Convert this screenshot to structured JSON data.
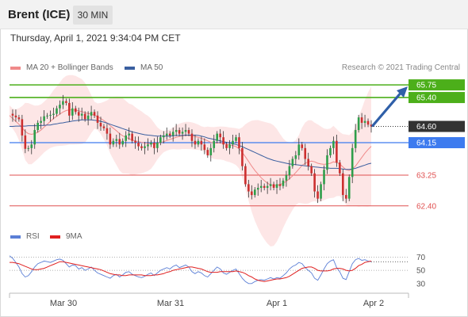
{
  "header": {
    "title": "Brent (ICE)",
    "timeframe": "30 MIN"
  },
  "datetime": "Thursday, April 1, 2021 9:34:04 PM CET",
  "legend": {
    "ma20": {
      "label": "MA 20 + Bollinger Bands",
      "color": "#f08a8a"
    },
    "ma50": {
      "label": "MA 50",
      "color": "#3a5fa0"
    },
    "copyright": "Research © 2021 Trading Central"
  },
  "rsi_legend": {
    "rsi": {
      "label": "RSI",
      "color": "#5b7fd6"
    },
    "ma9": {
      "label": "9MA",
      "color": "#e02020"
    }
  },
  "chart_data": [
    {
      "type": "candlestick",
      "x_ticks": [
        "Mar 30",
        "Mar 31",
        "Apr 1",
        "Apr 2"
      ],
      "ylim": [
        62.0,
        65.95
      ],
      "price_levels": [
        {
          "value": 65.75,
          "label": "65.75",
          "style": "resistance",
          "color": "#4caf1a"
        },
        {
          "value": 65.4,
          "label": "65.40",
          "style": "resistance",
          "color": "#4caf1a"
        },
        {
          "value": 64.6,
          "label": "64.60",
          "style": "last",
          "color": "#333333"
        },
        {
          "value": 64.15,
          "label": "64.15",
          "style": "pivot",
          "color": "#3d7bef"
        },
        {
          "value": 63.25,
          "label": "63.25",
          "style": "support",
          "color": "#e05050"
        },
        {
          "value": 62.4,
          "label": "62.40",
          "style": "support",
          "color": "#e05050"
        }
      ],
      "series": [
        {
          "name": "price",
          "values": [
            64.95,
            64.9,
            64.85,
            64.8,
            64.35,
            63.98,
            64.0,
            64.1,
            64.5,
            64.7,
            64.75,
            64.88,
            64.9,
            64.92,
            64.95,
            65.1,
            65.2,
            65.3,
            65.25,
            64.9,
            65.1,
            65.0,
            64.9,
            64.95,
            64.8,
            64.9,
            65.0,
            64.9,
            64.7,
            64.6,
            64.55,
            64.4,
            64.1,
            64.2,
            64.25,
            64.1,
            64.2,
            64.35,
            64.4,
            64.2,
            64.15,
            64.05,
            64.0,
            64.05,
            64.1,
            64.15,
            64.0,
            64.15,
            64.3,
            64.35,
            64.4,
            64.35,
            64.45,
            64.5,
            64.4,
            64.45,
            64.5,
            64.4,
            64.2,
            64.1,
            64.2,
            64.1,
            63.95,
            63.8,
            64.0,
            64.2,
            64.4,
            64.3,
            64.1,
            64.0,
            64.1,
            64.2,
            64.3,
            64.0,
            63.5,
            63.0,
            62.8,
            62.7,
            62.85,
            62.9,
            62.95,
            62.9,
            62.95,
            63.0,
            62.9,
            63.0,
            62.95,
            63.1,
            63.25,
            63.5,
            63.7,
            63.8,
            64.1,
            64.0,
            63.7,
            63.5,
            63.3,
            62.8,
            62.6,
            63.0,
            63.4,
            63.8,
            64.0,
            64.2,
            63.6,
            63.3,
            62.7,
            62.6,
            63.2,
            64.0,
            64.5,
            64.85,
            64.7,
            64.75,
            64.65,
            64.6
          ]
        },
        {
          "name": "MA 20",
          "values": [
            64.9,
            64.82,
            64.74,
            64.66,
            64.56,
            64.46,
            64.4,
            64.38,
            64.4,
            64.44,
            64.5,
            64.58,
            64.66,
            64.74,
            64.82,
            64.88,
            64.94,
            65.0,
            65.04,
            65.06,
            65.06,
            65.05,
            65.03,
            65.01,
            64.98,
            64.96,
            64.94,
            64.91,
            64.87,
            64.82,
            64.76,
            64.7,
            64.62,
            64.55,
            64.48,
            64.4,
            64.34,
            64.3,
            64.26,
            64.22,
            64.2,
            64.18,
            64.16,
            64.14,
            64.13,
            64.12,
            64.12,
            64.13,
            64.15,
            64.18,
            64.21,
            64.24,
            64.27,
            64.3,
            64.32,
            64.34,
            64.35,
            64.35,
            64.34,
            64.32,
            64.3,
            64.27,
            64.24,
            64.2,
            64.16,
            64.14,
            64.14,
            64.14,
            64.13,
            64.11,
            64.09,
            64.07,
            64.04,
            63.98,
            63.88,
            63.76,
            63.63,
            63.5,
            63.38,
            63.28,
            63.18,
            63.1,
            63.03,
            62.98,
            62.96,
            62.97,
            62.99,
            63.03,
            63.08,
            63.15,
            63.23,
            63.32,
            63.42,
            63.52,
            63.58,
            63.62,
            63.64,
            63.62,
            63.58,
            63.56,
            63.55,
            63.56,
            63.58,
            63.62,
            63.6,
            63.56,
            63.48,
            63.4,
            63.38,
            63.42,
            63.5,
            63.62,
            63.74,
            63.86,
            63.96,
            64.05
          ]
        },
        {
          "name": "MA 50",
          "values": [
            64.6,
            64.6,
            64.61,
            64.61,
            64.61,
            64.61,
            64.62,
            64.62,
            64.62,
            64.62,
            64.63,
            64.63,
            64.64,
            64.64,
            64.66,
            64.67,
            64.69,
            64.7,
            64.72,
            64.73,
            64.75,
            64.76,
            64.77,
            64.78,
            64.78,
            64.78,
            64.78,
            64.77,
            64.76,
            64.74,
            64.72,
            64.69,
            64.66,
            64.63,
            64.6,
            64.57,
            64.54,
            64.51,
            64.48,
            64.45,
            64.43,
            64.41,
            64.39,
            64.37,
            64.36,
            64.35,
            64.34,
            64.33,
            64.33,
            64.33,
            64.33,
            64.33,
            64.34,
            64.35,
            64.35,
            64.35,
            64.36,
            64.36,
            64.36,
            64.36,
            64.35,
            64.33,
            64.31,
            64.28,
            64.26,
            64.24,
            64.22,
            64.2,
            64.18,
            64.16,
            64.14,
            64.12,
            64.1,
            64.07,
            64.04,
            64.0,
            63.96,
            63.92,
            63.88,
            63.84,
            63.8,
            63.76,
            63.72,
            63.69,
            63.66,
            63.64,
            63.62,
            63.6,
            63.58,
            63.56,
            63.55,
            63.54,
            63.53,
            63.52,
            63.51,
            63.5,
            63.49,
            63.48,
            63.47,
            63.46,
            63.45,
            63.45,
            63.44,
            63.44,
            63.44,
            63.43,
            63.42,
            63.41,
            63.41,
            63.42,
            63.44,
            63.47,
            63.5,
            63.53,
            63.56,
            63.58
          ]
        }
      ]
    },
    {
      "type": "line",
      "y_ticks": [
        70,
        50,
        30
      ],
      "ylim": [
        25,
        80
      ],
      "series": [
        {
          "name": "RSI",
          "values": [
            72,
            68,
            62,
            55,
            45,
            40,
            42,
            48,
            55,
            60,
            62,
            64,
            63,
            62,
            64,
            66,
            67,
            65,
            60,
            55,
            58,
            57,
            52,
            54,
            50,
            52,
            55,
            50,
            46,
            44,
            42,
            40,
            38,
            42,
            44,
            40,
            43,
            47,
            48,
            44,
            42,
            40,
            39,
            41,
            44,
            46,
            42,
            46,
            50,
            52,
            54,
            52,
            56,
            58,
            54,
            56,
            58,
            55,
            48,
            45,
            48,
            46,
            42,
            40,
            45,
            50,
            55,
            52,
            46,
            44,
            47,
            50,
            52,
            45,
            38,
            33,
            30,
            30,
            33,
            35,
            36,
            35,
            37,
            39,
            37,
            39,
            38,
            42,
            46,
            52,
            56,
            58,
            62,
            60,
            54,
            50,
            46,
            38,
            35,
            43,
            52,
            60,
            64,
            66,
            54,
            48,
            38,
            36,
            48,
            60,
            66,
            68,
            65,
            66,
            64,
            63
          ]
        },
        {
          "name": "9MA",
          "values": [
            62,
            62,
            61,
            60,
            58,
            56,
            54,
            52,
            51,
            51,
            52,
            53,
            55,
            57,
            59,
            61,
            63,
            63,
            62,
            61,
            60,
            59,
            58,
            57,
            56,
            55,
            54,
            53,
            52,
            51,
            49,
            47,
            45,
            44,
            43,
            43,
            42,
            42,
            43,
            43,
            43,
            43,
            43,
            42,
            42,
            42,
            43,
            43,
            44,
            45,
            47,
            48,
            50,
            51,
            52,
            53,
            54,
            55,
            55,
            54,
            53,
            52,
            50,
            48,
            47,
            47,
            47,
            48,
            48,
            48,
            48,
            48,
            49,
            48,
            47,
            45,
            42,
            40,
            37,
            35,
            34,
            33,
            34,
            35,
            36,
            37,
            37,
            38,
            39,
            41,
            44,
            47,
            50,
            53,
            54,
            55,
            55,
            53,
            50,
            49,
            49,
            49,
            50,
            52,
            53,
            53,
            52,
            50,
            49,
            50,
            53,
            57,
            59,
            62,
            63,
            64
          ]
        }
      ]
    }
  ]
}
